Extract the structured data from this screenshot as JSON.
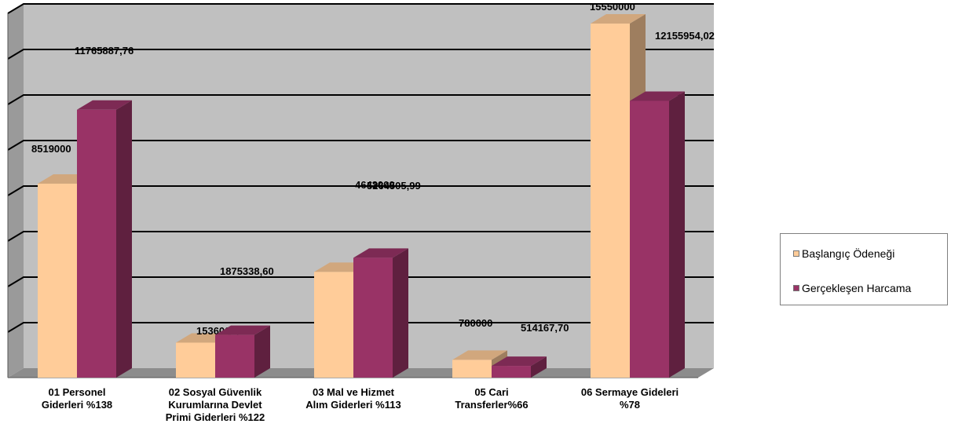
{
  "chart_data": {
    "type": "bar",
    "title": "",
    "xlabel": "",
    "ylabel": "",
    "ylim": [
      0,
      16000000
    ],
    "grid": true,
    "legend_position": "right",
    "categories": [
      [
        "01 Personel",
        "Giderleri %138"
      ],
      [
        "02 Sosyal Güvenlik",
        "Kurumlarına Devlet",
        "Primi Giderleri %122"
      ],
      [
        "03 Mal ve Hizmet",
        "Alım Giderleri %113"
      ],
      [
        "05 Cari",
        "Transferler%66"
      ],
      [
        "06 Sermaye Gideleri",
        "%78"
      ]
    ],
    "series": [
      {
        "name": "Başlangıç Ödeneği",
        "color": "#ffcc99",
        "values": [
          8519000,
          1536000,
          4643000,
          780000,
          15550000
        ],
        "labels": [
          "8519000",
          "1536000,00",
          "4643000",
          "780000",
          "15550000"
        ]
      },
      {
        "name": "Gerçekleşen Harcama",
        "color": "#993366",
        "values": [
          11765887.76,
          1875338.6,
          5264505.99,
          514167.7,
          12155954.02
        ],
        "labels": [
          "11765887,76",
          "1875338,60",
          "5264505,99",
          "514167,70",
          "12155954,02"
        ]
      }
    ]
  }
}
